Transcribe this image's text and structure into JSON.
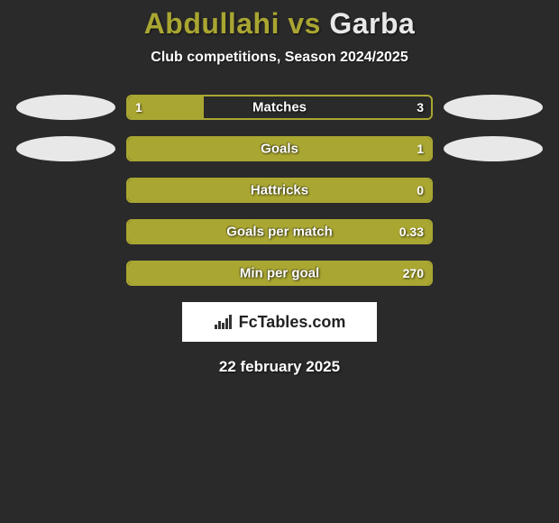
{
  "title": {
    "player1": "Abdullahi",
    "vs": "vs",
    "player2": "Garba",
    "player1_color": "#a9a632",
    "player2_color": "#e8e8e8"
  },
  "subtitle": "Club competitions, Season 2024/2025",
  "oval_colors": {
    "left": "#e8e8e8",
    "right": "#e8e8e8"
  },
  "bar_style": {
    "border_color": "#a9a632",
    "fill_color": "#a9a632",
    "bg_color": "transparent",
    "height": 28,
    "border_radius": 6,
    "label_fontsize": 15,
    "value_fontsize": 14
  },
  "stats": [
    {
      "label": "Matches",
      "left_val": "1",
      "right_val": "3",
      "fill_pct": 25,
      "show_ovals": true
    },
    {
      "label": "Goals",
      "left_val": "",
      "right_val": "1",
      "fill_pct": 100,
      "show_ovals": true
    },
    {
      "label": "Hattricks",
      "left_val": "",
      "right_val": "0",
      "fill_pct": 100,
      "show_ovals": false
    },
    {
      "label": "Goals per match",
      "left_val": "",
      "right_val": "0.33",
      "fill_pct": 100,
      "show_ovals": false
    },
    {
      "label": "Min per goal",
      "left_val": "",
      "right_val": "270",
      "fill_pct": 100,
      "show_ovals": false
    }
  ],
  "logo": {
    "text": "FcTables.com",
    "icon_name": "bar-chart-icon",
    "icon_color": "#333333"
  },
  "date": "22 february 2025",
  "background_color": "#2a2a2a"
}
